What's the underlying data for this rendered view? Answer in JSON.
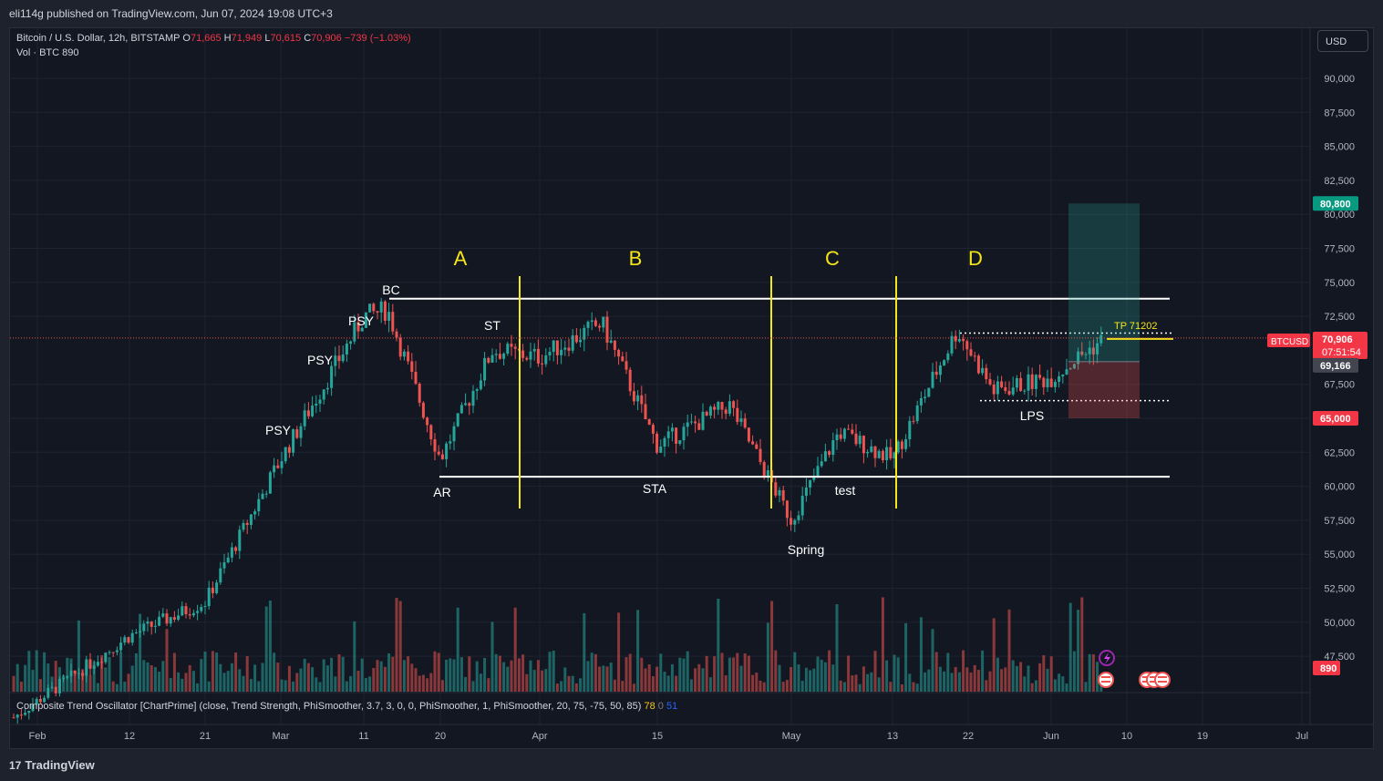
{
  "header": {
    "published": "eli114g published on TradingView.com, Jun 07, 2024 19:08 UTC+3"
  },
  "legend": {
    "symbol": "Bitcoin / U.S. Dollar, 12h, BITSTAMP",
    "o_label": "O",
    "o": "71,665",
    "h_label": "H",
    "h": "71,949",
    "l_label": "L",
    "l": "70,615",
    "c_label": "C",
    "c": "70,906",
    "change": "−739 (−1.03%)",
    "vol_label": "Vol · BTC",
    "vol": "890"
  },
  "currency_button": "USD",
  "oscillator": {
    "text": "Composite Trend Oscillator [ChartPrime] (close, Trend Strength, PhiSmoother, 3.7, 3, 0, 0, PhiSmoother, 1, PhiSmoother, 20, 75, -75, 50, 85)",
    "v1": "78",
    "v2": "0",
    "v3": "51"
  },
  "footer": {
    "brand": "TradingView",
    "brand_mark": "17"
  },
  "price_tags": {
    "symbol": "BTCUSD",
    "last": "70,906",
    "countdown": "07:51:54",
    "target": "80,800",
    "entry": "69,166",
    "stop": "65,000",
    "volume": "890"
  },
  "annotations": {
    "phases": [
      "A",
      "B",
      "C",
      "D"
    ],
    "labels": [
      "BC",
      "PSY",
      "PSY",
      "PSY",
      "ST",
      "AR",
      "STA",
      "Spring",
      "test",
      "LPS"
    ],
    "tp": "TP 71202"
  },
  "colors": {
    "up": "#26a69a",
    "down": "#ef5350",
    "background": "#131722",
    "accent_yellow": "#f5e61a",
    "target_zone": "#26a69a",
    "stop_zone": "#ef5350"
  },
  "chart_data": {
    "type": "candlestick",
    "title": "Bitcoin / U.S. Dollar, 12h, BITSTAMP",
    "y_ticks": [
      "90,000",
      "87,500",
      "85,000",
      "82,500",
      "80,000",
      "77,500",
      "75,000",
      "72,500",
      "67,500",
      "65,000",
      "62,500",
      "60,000",
      "57,500",
      "55,000",
      "52,500",
      "50,000",
      "47,500"
    ],
    "x_ticks": [
      "Feb",
      "12",
      "21",
      "Mar",
      "11",
      "20",
      "Apr",
      "15",
      "May",
      "13",
      "22",
      "Jun",
      "10",
      "19",
      "Jul"
    ],
    "ylim": [
      46500,
      92000
    ],
    "trading_range": {
      "upper": 73800,
      "lower": 60700
    },
    "lps_level": 66300,
    "tp_level": 71202,
    "position": {
      "target": 80800,
      "entry": 69166,
      "stop": 65000
    },
    "close_path": [
      [
        "Feb",
        43000
      ],
      [
        "12",
        49000
      ],
      [
        "21",
        51500
      ],
      [
        "Mar",
        62000
      ],
      [
        "7",
        68000
      ],
      [
        "11",
        72500
      ],
      [
        "14",
        73000
      ],
      [
        "20",
        62000
      ],
      [
        "25",
        70000
      ],
      [
        "Apr",
        69500
      ],
      [
        "8",
        72000
      ],
      [
        "15",
        63000
      ],
      [
        "20",
        66000
      ],
      [
        "May",
        57500
      ],
      [
        "6",
        64000
      ],
      [
        "13",
        62000
      ],
      [
        "20",
        71500
      ],
      [
        "24",
        67000
      ],
      [
        "Jun",
        68000
      ],
      [
        "7",
        70906
      ]
    ]
  }
}
